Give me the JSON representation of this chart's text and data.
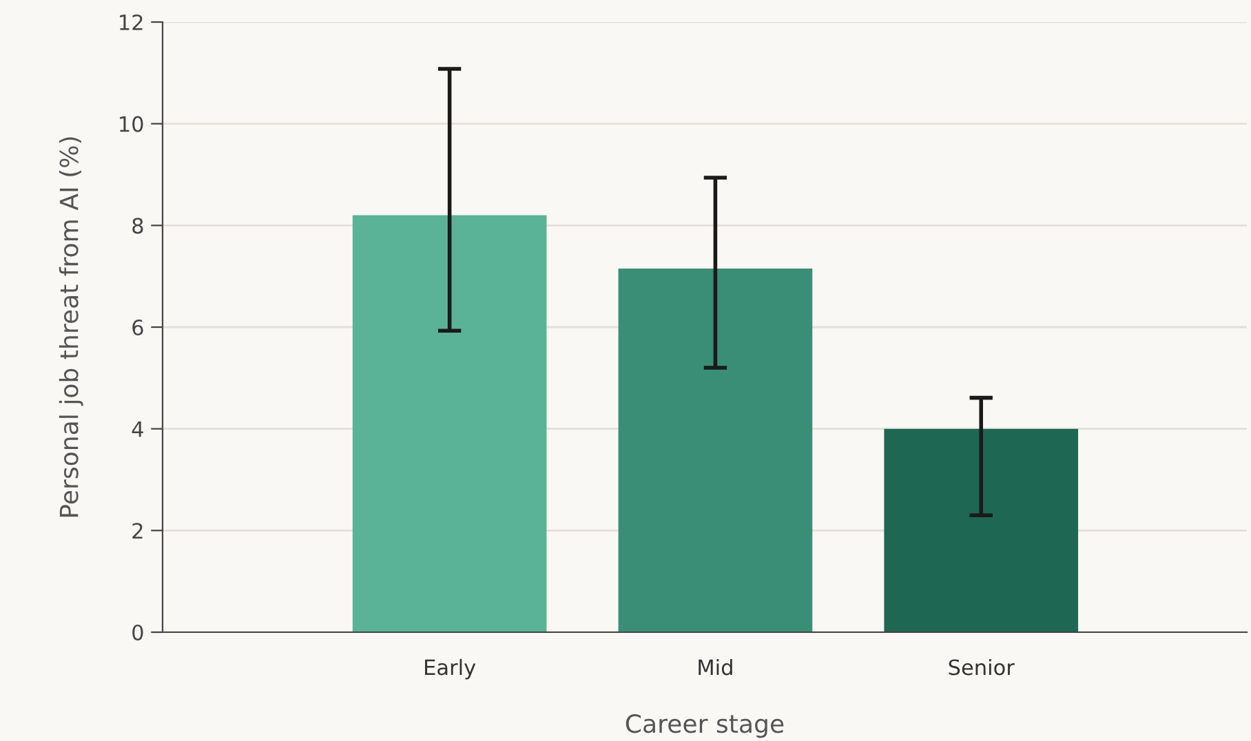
{
  "chart_data": {
    "type": "bar",
    "xlabel": "Career stage",
    "ylabel": "Personal job threat from AI (%)",
    "categories": [
      "Early",
      "Mid",
      "Senior"
    ],
    "values": [
      8.2,
      7.15,
      4.0
    ],
    "colors": [
      "#5ab396",
      "#3a8e76",
      "#1e6753"
    ],
    "errors": [
      [
        5.93,
        11.08
      ],
      [
        5.2,
        8.94
      ],
      [
        2.3,
        4.61
      ]
    ],
    "ylim": [
      0,
      12
    ],
    "yticks": [
      0,
      2,
      4,
      6,
      8,
      10,
      12
    ],
    "grid": "y"
  }
}
